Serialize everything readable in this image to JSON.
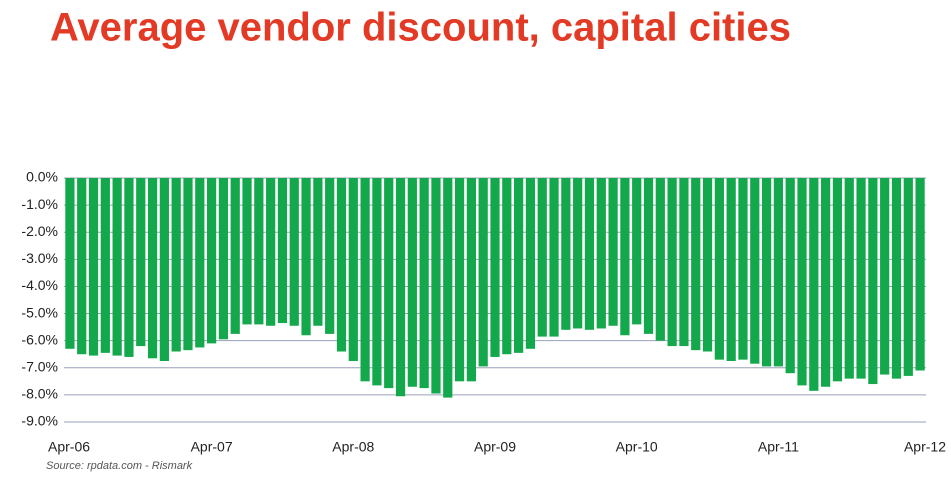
{
  "chart_data": {
    "type": "bar",
    "title": "Average vendor discount, capital cities",
    "source": "Source:  rpdata.com - Rismark",
    "categories": [
      "Apr-06",
      null,
      null,
      null,
      null,
      null,
      null,
      null,
      null,
      null,
      null,
      null,
      "Apr-07",
      null,
      null,
      null,
      null,
      null,
      null,
      null,
      null,
      null,
      null,
      null,
      "Apr-08",
      null,
      null,
      null,
      null,
      null,
      null,
      null,
      null,
      null,
      null,
      null,
      "Apr-09",
      null,
      null,
      null,
      null,
      null,
      null,
      null,
      null,
      null,
      null,
      null,
      "Apr-10",
      null,
      null,
      null,
      null,
      null,
      null,
      null,
      null,
      null,
      null,
      null,
      "Apr-11",
      null,
      null,
      null,
      null,
      null,
      null,
      null,
      null,
      null,
      null,
      null,
      "Apr-12"
    ],
    "values": [
      -6.3,
      -6.5,
      -6.55,
      -6.45,
      -6.55,
      -6.6,
      -6.2,
      -6.65,
      -6.75,
      -6.4,
      -6.35,
      -6.25,
      -6.1,
      -5.95,
      -5.75,
      -5.4,
      -5.4,
      -5.45,
      -5.35,
      -5.45,
      -5.8,
      -5.45,
      -5.75,
      -6.4,
      -6.75,
      -7.5,
      -7.65,
      -7.75,
      -8.05,
      -7.7,
      -7.75,
      -7.95,
      -8.1,
      -7.5,
      -7.5,
      -6.95,
      -6.6,
      -6.5,
      -6.45,
      -6.3,
      -5.85,
      -5.85,
      -5.6,
      -5.55,
      -5.6,
      -5.55,
      -5.45,
      -5.8,
      -5.4,
      -5.75,
      -6.0,
      -6.2,
      -6.2,
      -6.35,
      -6.4,
      -6.7,
      -6.75,
      -6.7,
      -6.85,
      -6.95,
      -6.95,
      -7.2,
      -7.65,
      -7.85,
      -7.7,
      -7.5,
      -7.4,
      -7.4,
      -7.6,
      -7.25,
      -7.4,
      -7.3,
      -7.1
    ],
    "color": "#13a84b",
    "ylim": [
      -9,
      0
    ],
    "yticks": [
      {
        "value": 0,
        "label": "0.0%"
      },
      {
        "value": -1,
        "label": "-1.0%"
      },
      {
        "value": -2,
        "label": "-2.0%"
      },
      {
        "value": -3,
        "label": "-3.0%"
      },
      {
        "value": -4,
        "label": "-4.0%"
      },
      {
        "value": -5,
        "label": "-5.0%"
      },
      {
        "value": -6,
        "label": "-6.0%"
      },
      {
        "value": -7,
        "label": "-7.0%"
      },
      {
        "value": -8,
        "label": "-8.0%"
      },
      {
        "value": -9,
        "label": "-9.0%"
      }
    ],
    "grid": true
  }
}
